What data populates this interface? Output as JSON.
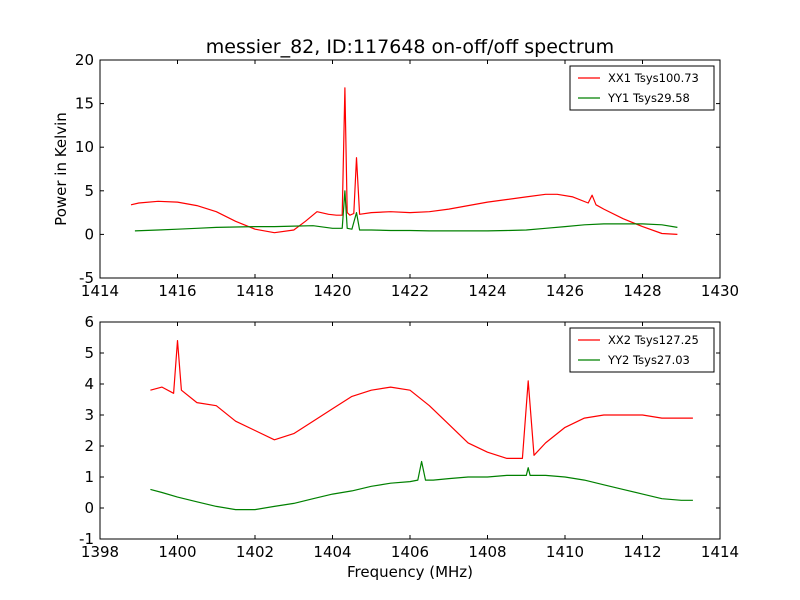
{
  "figure": {
    "title": "messier_82, ID:117648 on-off/off spectrum",
    "xlabel": "Frequency (MHz)"
  },
  "chart_data": [
    {
      "type": "line",
      "title": "messier_82, ID:117648 on-off/off spectrum",
      "xlabel": "",
      "ylabel": "Power in Kelvin",
      "xlim": [
        1414,
        1430
      ],
      "ylim": [
        -5,
        20
      ],
      "xticks": [
        1414,
        1416,
        1418,
        1420,
        1422,
        1424,
        1426,
        1428,
        1430
      ],
      "yticks": [
        -5,
        0,
        5,
        10,
        15,
        20
      ],
      "legend_position": "top-right",
      "series": [
        {
          "name": "XX1 Tsys100.73",
          "color": "#ff0000",
          "x": [
            1414.8,
            1415.0,
            1415.5,
            1416.0,
            1416.5,
            1417.0,
            1417.5,
            1418.0,
            1418.5,
            1419.0,
            1419.3,
            1419.6,
            1419.9,
            1420.1,
            1420.25,
            1420.32,
            1420.38,
            1420.45,
            1420.55,
            1420.62,
            1420.7,
            1421.0,
            1421.5,
            1422.0,
            1422.5,
            1423.0,
            1423.5,
            1424.0,
            1424.5,
            1425.0,
            1425.5,
            1425.8,
            1426.2,
            1426.6,
            1426.7,
            1426.8,
            1427.0,
            1427.5,
            1428.0,
            1428.5,
            1428.9
          ],
          "values": [
            3.4,
            3.6,
            3.8,
            3.7,
            3.3,
            2.6,
            1.5,
            0.6,
            0.2,
            0.5,
            1.5,
            2.6,
            2.3,
            2.2,
            2.2,
            16.8,
            2.5,
            2.2,
            2.4,
            8.8,
            2.3,
            2.5,
            2.6,
            2.5,
            2.6,
            2.9,
            3.3,
            3.7,
            4.0,
            4.3,
            4.6,
            4.6,
            4.3,
            3.6,
            4.5,
            3.4,
            2.9,
            1.8,
            0.9,
            0.1,
            0.0
          ]
        },
        {
          "name": "YY1 Tsys29.58",
          "color": "#008000",
          "x": [
            1414.9,
            1415.5,
            1416.0,
            1416.5,
            1417.0,
            1417.5,
            1418.0,
            1418.5,
            1419.0,
            1419.5,
            1420.0,
            1420.25,
            1420.32,
            1420.38,
            1420.5,
            1420.62,
            1420.7,
            1421.0,
            1421.5,
            1422.0,
            1422.5,
            1423.0,
            1423.5,
            1424.0,
            1424.5,
            1425.0,
            1425.5,
            1426.0,
            1426.5,
            1427.0,
            1427.5,
            1428.0,
            1428.5,
            1428.9
          ],
          "values": [
            0.4,
            0.5,
            0.6,
            0.7,
            0.8,
            0.85,
            0.9,
            0.9,
            0.95,
            1.0,
            0.7,
            0.7,
            5.0,
            0.7,
            0.6,
            2.5,
            0.5,
            0.5,
            0.45,
            0.45,
            0.4,
            0.4,
            0.4,
            0.4,
            0.45,
            0.5,
            0.7,
            0.9,
            1.1,
            1.2,
            1.2,
            1.2,
            1.1,
            0.8
          ]
        }
      ]
    },
    {
      "type": "line",
      "title": "",
      "xlabel": "Frequency (MHz)",
      "ylabel": "",
      "xlim": [
        1398,
        1414
      ],
      "ylim": [
        -1,
        6
      ],
      "xticks": [
        1398,
        1400,
        1402,
        1404,
        1406,
        1408,
        1410,
        1412,
        1414
      ],
      "yticks": [
        -1,
        0,
        1,
        2,
        3,
        4,
        5,
        6
      ],
      "legend_position": "top-right",
      "series": [
        {
          "name": "XX2 Tsys127.25",
          "color": "#ff0000",
          "x": [
            1399.3,
            1399.6,
            1399.9,
            1400.0,
            1400.1,
            1400.5,
            1401.0,
            1401.5,
            1402.0,
            1402.5,
            1403.0,
            1403.5,
            1404.0,
            1404.5,
            1405.0,
            1405.5,
            1406.0,
            1406.5,
            1407.0,
            1407.5,
            1408.0,
            1408.5,
            1408.9,
            1409.05,
            1409.2,
            1409.5,
            1410.0,
            1410.5,
            1411.0,
            1411.5,
            1412.0,
            1412.5,
            1413.0,
            1413.3
          ],
          "values": [
            3.8,
            3.9,
            3.7,
            5.4,
            3.8,
            3.4,
            3.3,
            2.8,
            2.5,
            2.2,
            2.4,
            2.8,
            3.2,
            3.6,
            3.8,
            3.9,
            3.8,
            3.3,
            2.7,
            2.1,
            1.8,
            1.6,
            1.6,
            4.1,
            1.7,
            2.1,
            2.6,
            2.9,
            3.0,
            3.0,
            3.0,
            2.9,
            2.9,
            2.9
          ]
        },
        {
          "name": "YY2 Tsys27.03",
          "color": "#008000",
          "x": [
            1399.3,
            1399.6,
            1400.0,
            1400.5,
            1401.0,
            1401.5,
            1402.0,
            1402.5,
            1403.0,
            1403.5,
            1404.0,
            1404.5,
            1405.0,
            1405.5,
            1406.0,
            1406.2,
            1406.3,
            1406.4,
            1406.6,
            1407.0,
            1407.5,
            1408.0,
            1408.5,
            1409.0,
            1409.05,
            1409.1,
            1409.5,
            1410.0,
            1410.5,
            1411.0,
            1411.5,
            1412.0,
            1412.5,
            1413.0,
            1413.3
          ],
          "values": [
            0.6,
            0.5,
            0.35,
            0.2,
            0.05,
            -0.05,
            -0.05,
            0.05,
            0.15,
            0.3,
            0.45,
            0.55,
            0.7,
            0.8,
            0.85,
            0.9,
            1.5,
            0.9,
            0.9,
            0.95,
            1.0,
            1.0,
            1.05,
            1.05,
            1.3,
            1.05,
            1.05,
            1.0,
            0.9,
            0.75,
            0.6,
            0.45,
            0.3,
            0.25,
            0.25
          ]
        }
      ]
    }
  ]
}
